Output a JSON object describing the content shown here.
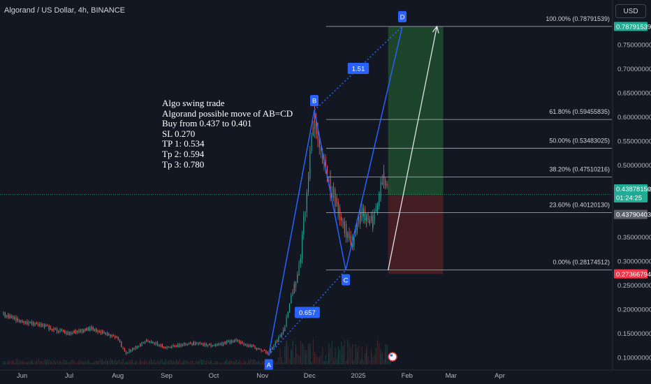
{
  "header": {
    "symbol": "Algorand / US Dollar, 4h, BINANCE",
    "currency_button": "USD"
  },
  "note": {
    "lines": [
      "Algo swing trade",
      "Algorand possible move of AB=CD",
      "Buy from 0.437 to 0.401",
      "SL 0.270",
      "TP 1: 0.534",
      "Tp 2: 0.594",
      "Tp 3: 0.780"
    ]
  },
  "colors": {
    "background": "#131722",
    "candle_up": "#26a69a",
    "candle_down": "#ef5350",
    "pattern": "#2962ff",
    "fib_line": "#b2b5be",
    "profit_zone": "#1f4a2e",
    "loss_zone": "#4a1f22",
    "current_price_badge": "#22ab94",
    "stop_badge": "#f23645"
  },
  "chart_data": {
    "type": "candlestick",
    "symbol": "ALGO/USD",
    "timeframe": "4h",
    "exchange": "BINANCE",
    "x_ticks": [
      "Jun",
      "Jul",
      "Aug",
      "Sep",
      "Oct",
      "Nov",
      "Dec",
      "2025",
      "Feb",
      "Mar",
      "Apr"
    ],
    "y_ticks": [
      "0.75000000",
      "0.70000000",
      "0.65000000",
      "0.60000000",
      "0.55000000",
      "0.50000000",
      "0.45000000",
      "0.35000000",
      "0.30000000",
      "0.25000000",
      "0.20000000",
      "0.15000000",
      "0.10000000"
    ],
    "y_values": [
      0.75,
      0.7,
      0.65,
      0.6,
      0.55,
      0.5,
      0.45,
      0.35,
      0.3,
      0.25,
      0.2,
      0.15,
      0.1
    ],
    "ylim": [
      0.0855,
      0.8355
    ],
    "price_path": [
      [
        "2024-05-20",
        0.19
      ],
      [
        "2024-06-01",
        0.175
      ],
      [
        "2024-06-15",
        0.165
      ],
      [
        "2024-07-01",
        0.15
      ],
      [
        "2024-07-15",
        0.16
      ],
      [
        "2024-08-01",
        0.14
      ],
      [
        "2024-08-06",
        0.11
      ],
      [
        "2024-08-20",
        0.135
      ],
      [
        "2024-09-01",
        0.12
      ],
      [
        "2024-09-15",
        0.13
      ],
      [
        "2024-10-01",
        0.125
      ],
      [
        "2024-10-15",
        0.135
      ],
      [
        "2024-11-01",
        0.115
      ],
      [
        "2024-11-05",
        0.108
      ],
      [
        "2024-11-15",
        0.16
      ],
      [
        "2024-11-25",
        0.3
      ],
      [
        "2024-12-04",
        0.6
      ],
      [
        "2024-12-10",
        0.5
      ],
      [
        "2024-12-20",
        0.4
      ],
      [
        "2024-12-28",
        0.33
      ],
      [
        "2025-01-03",
        0.4
      ],
      [
        "2025-01-10",
        0.38
      ],
      [
        "2025-01-17",
        0.47
      ],
      [
        "2025-01-21",
        0.44
      ]
    ],
    "pattern_points": [
      {
        "label": "A",
        "date": "2024-11-05",
        "price": 0.1053
      },
      {
        "label": "B",
        "date": "2024-12-04",
        "price": 0.6134
      },
      {
        "label": "C",
        "date": "2024-12-24",
        "price": 0.2817
      },
      {
        "label": "D",
        "date": "2025-01-29",
        "price": 0.7879
      }
    ],
    "ratio_labels": [
      "0.657",
      "1.51"
    ],
    "fib_levels": [
      {
        "label": "100.00% (0.78791539)",
        "value": 0.78791539
      },
      {
        "label": "61.80% (0.59455835)",
        "value": 0.59455835
      },
      {
        "label": "50.00% (0.53483025)",
        "value": 0.53483025
      },
      {
        "label": "38.20% (0.47510216)",
        "value": 0.47510216
      },
      {
        "label": "23.60% (0.40120130)",
        "value": 0.4012013
      },
      {
        "label": "0.00% (0.28174512)",
        "value": 0.28174512
      }
    ],
    "position": {
      "type": "long",
      "entry": 0.4379,
      "target": 0.78791539,
      "stop": 0.27366794,
      "start": "2025-01-20",
      "end": "2025-02-24"
    },
    "price_badges": [
      {
        "name": "target",
        "value": 0.78791539,
        "text": "0.78791539"
      },
      {
        "name": "current",
        "value": 0.4387815,
        "text": "0.43878150",
        "sub": "01:24:25"
      },
      {
        "name": "entry",
        "value": 0.43790403,
        "text": "0.43790403"
      },
      {
        "name": "stop",
        "value": 0.27366794,
        "text": "0.27366794"
      }
    ]
  }
}
